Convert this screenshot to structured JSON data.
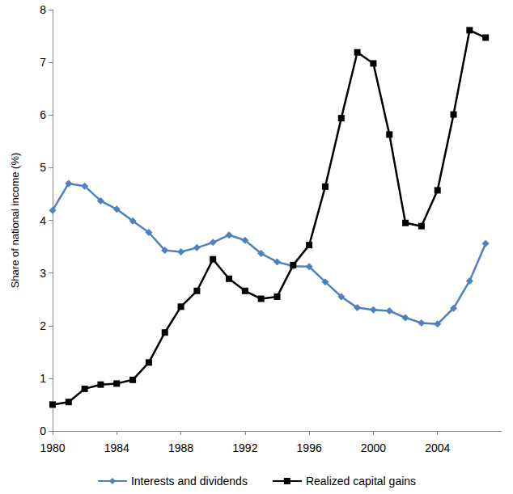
{
  "chart_data": {
    "type": "line",
    "y_label": "Share of national income (%)",
    "x": [
      1980,
      1981,
      1982,
      1983,
      1984,
      1985,
      1986,
      1987,
      1988,
      1989,
      1990,
      1991,
      1992,
      1993,
      1994,
      1995,
      1996,
      1997,
      1998,
      1999,
      2000,
      2001,
      2002,
      2003,
      2004,
      2005,
      2006,
      2007
    ],
    "series": [
      {
        "name": "Interests and dividends",
        "color": "#4f81bd",
        "marker": "diamond",
        "line_style": "solid",
        "values": [
          4.19,
          4.7,
          4.65,
          4.37,
          4.21,
          3.99,
          3.77,
          3.43,
          3.4,
          3.48,
          3.58,
          3.72,
          3.62,
          3.37,
          3.21,
          3.13,
          3.12,
          2.83,
          2.55,
          2.34,
          2.3,
          2.28,
          2.15,
          2.05,
          2.03,
          2.33,
          2.85,
          3.56
        ]
      },
      {
        "name": "Realized capital gains",
        "color": "#000000",
        "marker": "square",
        "line_style": "solid",
        "values": [
          0.5,
          0.55,
          0.8,
          0.88,
          0.9,
          0.97,
          1.3,
          1.87,
          2.36,
          2.66,
          3.26,
          2.89,
          2.66,
          2.51,
          2.55,
          3.15,
          3.53,
          4.64,
          5.94,
          7.19,
          6.98,
          5.63,
          3.95,
          3.89,
          4.57,
          6.01,
          7.61,
          7.47
        ]
      }
    ],
    "xlim": [
      1980,
      2008
    ],
    "xticks": [
      1980,
      1984,
      1988,
      1992,
      1996,
      2000,
      2004
    ],
    "ylim": [
      0,
      8
    ],
    "yticks": [
      0,
      1,
      2,
      3,
      4,
      5,
      6,
      7,
      8
    ],
    "grid": false,
    "legend": "bottom"
  }
}
